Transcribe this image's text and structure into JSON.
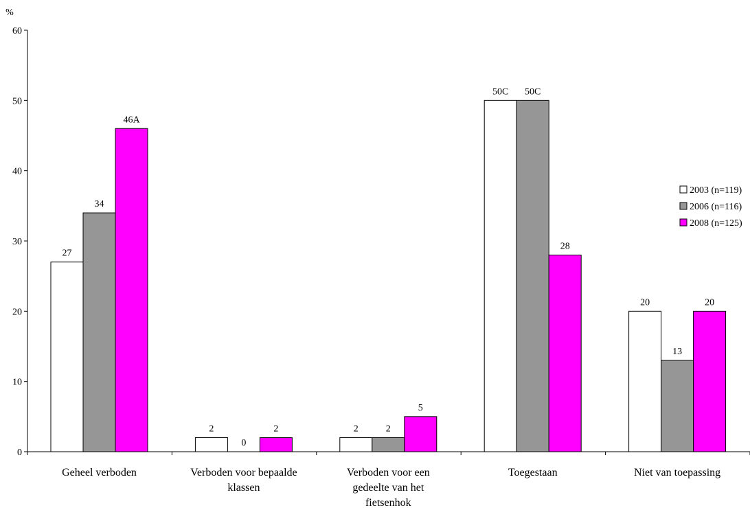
{
  "chart_data": {
    "type": "bar",
    "ylabel": "%",
    "ylim": [
      0,
      60
    ],
    "yticks": [
      0,
      10,
      20,
      30,
      40,
      50,
      60
    ],
    "grid": false,
    "legend_position": "right",
    "categories": [
      [
        "Geheel verboden"
      ],
      [
        "Verboden voor bepaalde",
        "klassen"
      ],
      [
        "Verboden voor een",
        "gedeelte van het",
        "fietsenhok"
      ],
      [
        "Toegestaan"
      ],
      [
        "Niet van toepassing"
      ]
    ],
    "series": [
      {
        "name": "2003 (n=119)",
        "color": "#ffffff",
        "values": [
          27,
          2,
          2,
          50,
          20
        ],
        "labels": [
          "27",
          "2",
          "2",
          "50C",
          "20"
        ]
      },
      {
        "name": "2006 (n=116)",
        "color": "#969696",
        "values": [
          34,
          0,
          2,
          50,
          13
        ],
        "labels": [
          "34",
          "0",
          "2",
          "50C",
          "13"
        ]
      },
      {
        "name": "2008 (n=125)",
        "color": "#ff00ff",
        "values": [
          46,
          2,
          5,
          28,
          20
        ],
        "labels": [
          "46A",
          "2",
          "5",
          "28",
          "20"
        ]
      }
    ]
  }
}
